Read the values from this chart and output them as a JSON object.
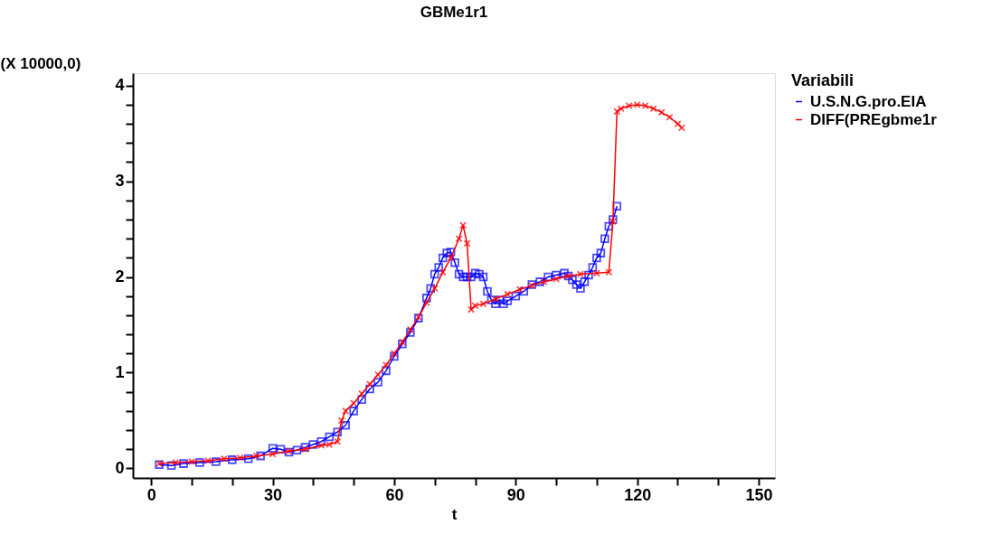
{
  "chart_data": {
    "type": "line",
    "title": "GBMe1r1",
    "xlabel": "t",
    "ylabel": "(X 10000,0)",
    "legend_title": "Variabili",
    "legend": "top right",
    "grid": false,
    "xlim": [
      -4.5,
      154
    ],
    "ylim": [
      -0.1,
      4.13
    ],
    "xticks": [
      0,
      {
        "value": 10,
        "label": null
      },
      {
        "value": 20,
        "label": null
      },
      30,
      {
        "value": 40,
        "label": null
      },
      {
        "value": 50,
        "label": null
      },
      60,
      {
        "value": 70,
        "label": null
      },
      {
        "value": 80,
        "label": null
      },
      90,
      {
        "value": 100,
        "label": null
      },
      {
        "value": 110,
        "label": null
      },
      120,
      {
        "value": 130,
        "label": null
      },
      {
        "value": 140,
        "label": null
      },
      150
    ],
    "yticks": [
      0,
      {
        "value": 0.2,
        "label": null
      },
      {
        "value": 0.4,
        "label": null
      },
      {
        "value": 0.6,
        "label": null
      },
      {
        "value": 0.8,
        "label": null
      },
      1,
      {
        "value": 1.2,
        "label": null
      },
      {
        "value": 1.4,
        "label": null
      },
      {
        "value": 1.6,
        "label": null
      },
      {
        "value": 1.8,
        "label": null
      },
      2,
      {
        "value": 2.2,
        "label": null
      },
      {
        "value": 2.4,
        "label": null
      },
      {
        "value": 2.6,
        "label": null
      },
      {
        "value": 2.8,
        "label": null
      },
      3,
      {
        "value": 3.2,
        "label": null
      },
      {
        "value": 3.4,
        "label": null
      },
      {
        "value": 3.6,
        "label": null
      },
      {
        "value": 3.8,
        "label": null
      },
      4
    ],
    "series": [
      {
        "name": "U.S.N.G.pro.EIA",
        "color": "#0000ff",
        "marker": "square",
        "line_style": "solid",
        "x": [
          2,
          5,
          8,
          12,
          16,
          20,
          24,
          27,
          30,
          32,
          34,
          36,
          38,
          40,
          42,
          44,
          46,
          48,
          50,
          52,
          54,
          56,
          58,
          60,
          62,
          64,
          66,
          68,
          69,
          70,
          71,
          72,
          73,
          74,
          75,
          76,
          77,
          78,
          79,
          80,
          81,
          82,
          83,
          84,
          85,
          86,
          87,
          88,
          90,
          92,
          94,
          96,
          98,
          100,
          102,
          103,
          104,
          105,
          106,
          107,
          108,
          109,
          110,
          111,
          112,
          113,
          114,
          115
        ],
        "values": [
          0.04,
          0.03,
          0.05,
          0.06,
          0.07,
          0.09,
          0.1,
          0.13,
          0.21,
          0.2,
          0.17,
          0.19,
          0.22,
          0.25,
          0.28,
          0.33,
          0.38,
          0.45,
          0.6,
          0.72,
          0.83,
          0.9,
          1.02,
          1.17,
          1.3,
          1.42,
          1.57,
          1.78,
          1.88,
          2.03,
          2.1,
          2.2,
          2.25,
          2.26,
          2.15,
          2.03,
          2.0,
          2.0,
          2.0,
          2.04,
          2.03,
          2.0,
          1.85,
          1.76,
          1.72,
          1.76,
          1.72,
          1.75,
          1.8,
          1.85,
          1.92,
          1.95,
          2.0,
          2.02,
          2.04,
          2.01,
          1.97,
          1.92,
          1.88,
          1.95,
          2.02,
          2.1,
          2.2,
          2.25,
          2.4,
          2.53,
          2.6,
          2.74
        ]
      },
      {
        "name": "DIFF(PREgbme1r",
        "color": "#ff0000",
        "marker": "cross",
        "line_style": "solid",
        "x": [
          2,
          6,
          10,
          14,
          18,
          22,
          26,
          30,
          34,
          38,
          42,
          44,
          46,
          47,
          48,
          50,
          52,
          54,
          56,
          58,
          60,
          62,
          64,
          66,
          68,
          70,
          72,
          74,
          76,
          77,
          78,
          79,
          80,
          82,
          85,
          88,
          91,
          94,
          97,
          100,
          103,
          106,
          110,
          113,
          114,
          115,
          116,
          118,
          120,
          122,
          124,
          126,
          128,
          130,
          131
        ],
        "values": [
          0.05,
          0.06,
          0.07,
          0.08,
          0.1,
          0.11,
          0.13,
          0.15,
          0.18,
          0.2,
          0.24,
          0.25,
          0.28,
          0.5,
          0.6,
          0.68,
          0.78,
          0.88,
          0.98,
          1.08,
          1.2,
          1.32,
          1.45,
          1.58,
          1.73,
          1.88,
          2.05,
          2.2,
          2.4,
          2.54,
          2.35,
          1.66,
          1.7,
          1.72,
          1.77,
          1.82,
          1.87,
          1.91,
          1.95,
          1.98,
          2.01,
          2.03,
          2.04,
          2.05,
          2.58,
          3.73,
          3.76,
          3.79,
          3.8,
          3.79,
          3.76,
          3.72,
          3.67,
          3.6,
          3.56
        ]
      }
    ]
  }
}
